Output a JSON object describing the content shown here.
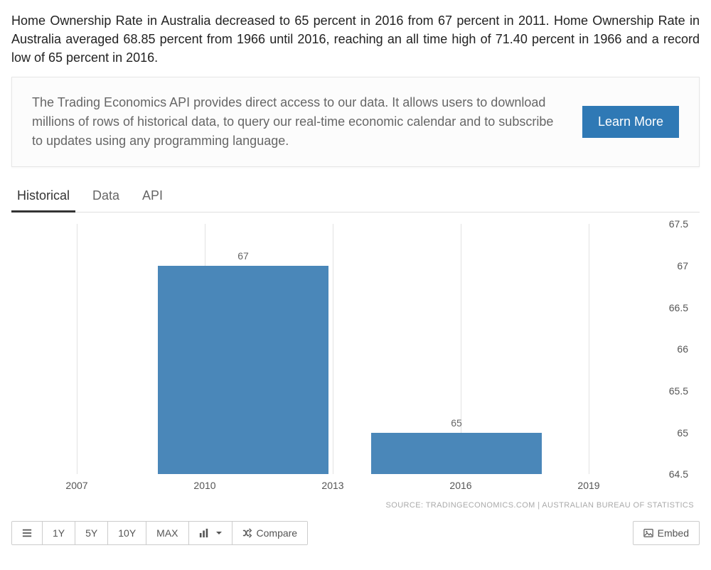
{
  "intro_text": "Home Ownership Rate in Australia decreased to 65 percent in 2016 from 67 percent in 2011. Home Ownership Rate in Australia averaged 68.85 percent from 1966 until 2016, reaching an all time high of 71.40 percent in 1966 and a record low of 65 percent in 2016.",
  "promo": {
    "text": "The Trading Economics API provides direct access to our data. It allows users to download millions of rows of historical data, to query our real-time economic calendar and to subscribe to updates using any programming language.",
    "button": "Learn More"
  },
  "tabs": {
    "items": [
      "Historical",
      "Data",
      "API"
    ],
    "active_index": 0
  },
  "chart": {
    "type": "bar",
    "bar_color": "#4a87b9",
    "grid_color": "#e2e2e2",
    "background_color": "#ffffff",
    "label_color": "#666666",
    "axis_color": "#555555",
    "label_fontsize": 14,
    "x_ticks": [
      2007,
      2010,
      2013,
      2016,
      2019
    ],
    "x_min": 2006,
    "x_max": 2020,
    "y_min": 64.5,
    "y_max": 67.5,
    "y_step": 0.5,
    "bars": [
      {
        "x_start": 2008.9,
        "x_end": 2012.9,
        "value": 67,
        "label": "67"
      },
      {
        "x_start": 2013.9,
        "x_end": 2017.9,
        "value": 65,
        "label": "65"
      }
    ],
    "source_text": "SOURCE: TRADINGECONOMICS.COM | AUSTRALIAN BUREAU OF STATISTICS"
  },
  "toolbar": {
    "ranges": [
      "1Y",
      "5Y",
      "10Y",
      "MAX"
    ],
    "compare_label": "Compare",
    "embed_label": "Embed"
  }
}
